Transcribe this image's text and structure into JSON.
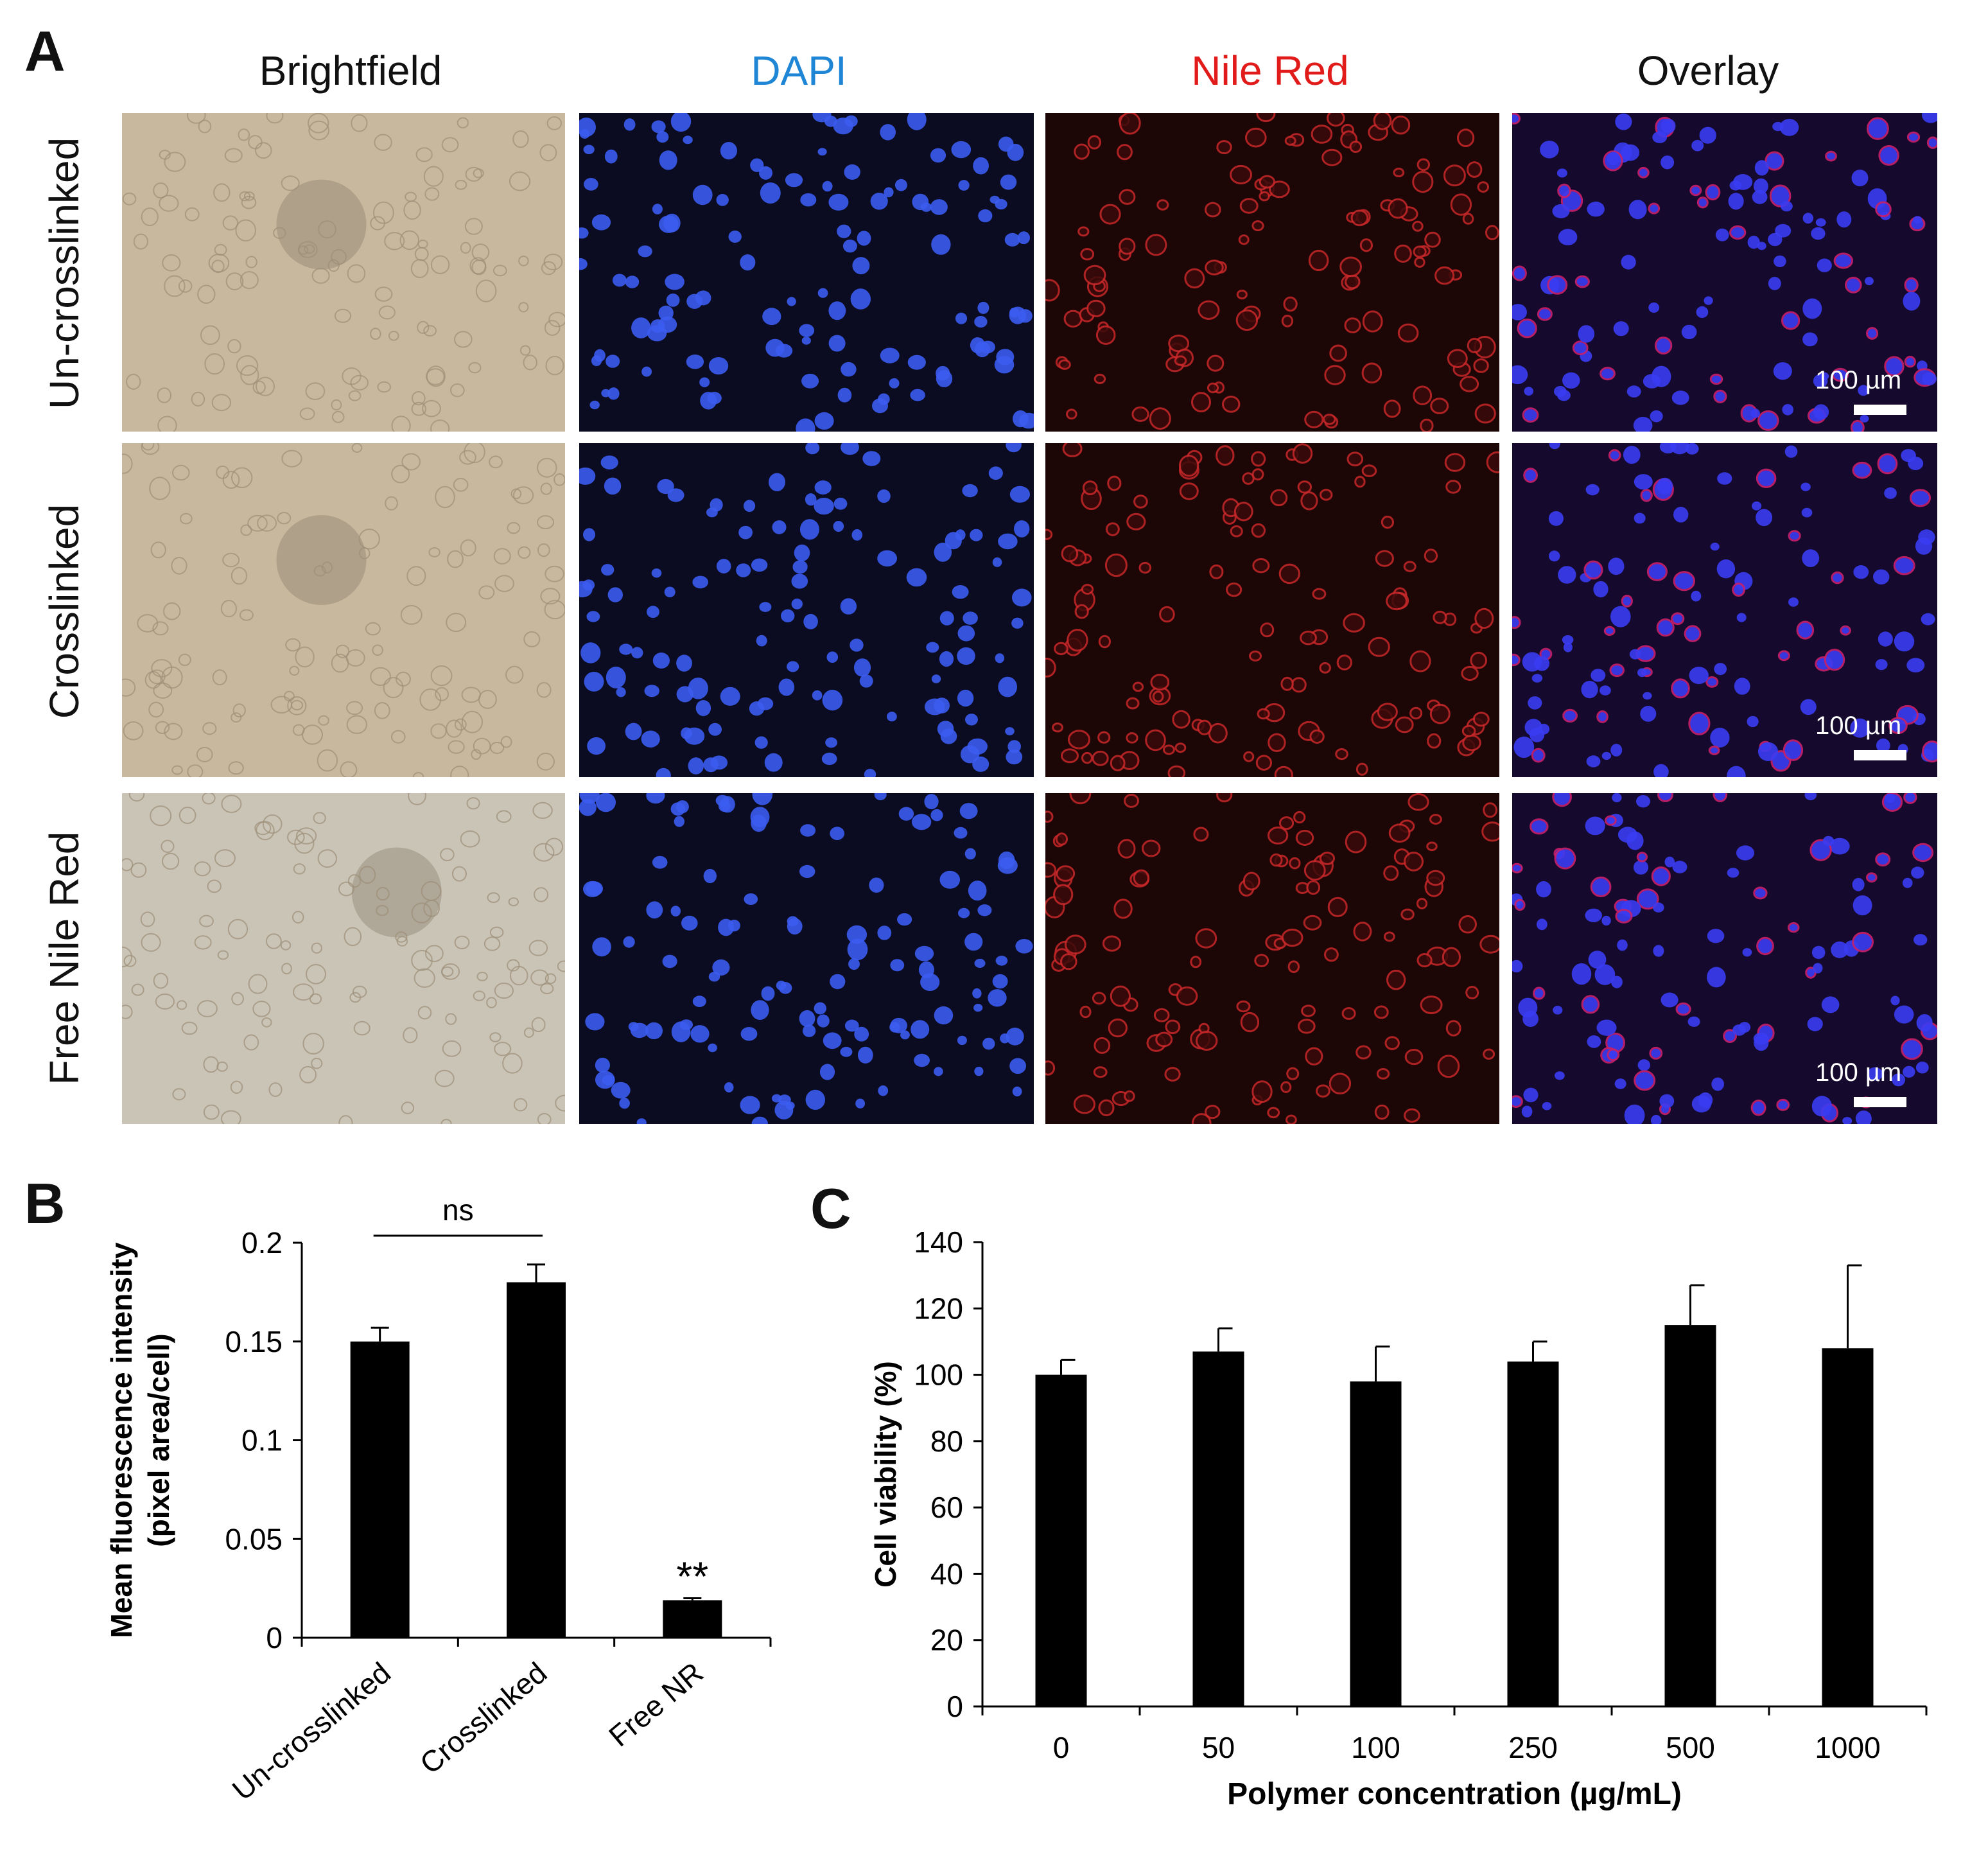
{
  "panel_a": {
    "label": "A",
    "columns": [
      {
        "label": "Brightfield",
        "color": "#111111"
      },
      {
        "label": "DAPI",
        "color": "#1f86d6"
      },
      {
        "label": "Nile Red",
        "color": "#e11a1a"
      },
      {
        "label": "Overlay",
        "color": "#111111"
      }
    ],
    "rows": [
      {
        "label": "Un-crosslinked",
        "scale_bar": "100 µm"
      },
      {
        "label": "Crosslinked",
        "scale_bar": "100 µm"
      },
      {
        "label": "Free Nile Red",
        "scale_bar": "100 µm"
      }
    ],
    "image_colors": {
      "brightfield": "#c8b89e",
      "brightfield_free": "#c9c4b6",
      "dapi_bg": "#0b0c22",
      "dapi_cell": "#3b5cf0",
      "nile_bg": "#1d0606",
      "nile_cell": "#c9282a",
      "overlay_bg": "#150a2e",
      "overlay_cell": "#3a3cf2"
    }
  },
  "chart_data": [
    {
      "panel": "B",
      "type": "bar",
      "categories": [
        "Un-crosslinked",
        "Crosslinked",
        "Free NR"
      ],
      "values": [
        0.15,
        0.18,
        0.019
      ],
      "errors": [
        0.007,
        0.009,
        0.001
      ],
      "ylabel_line1": "Mean fluorescence intensity",
      "ylabel_line2": "(pixel area/cell)",
      "ylim": [
        0,
        0.2
      ],
      "yticks": [
        "0",
        "0.05",
        "0.1",
        "0.15",
        "0.2"
      ],
      "annotations": {
        "ns": "ns",
        "significance": "**"
      },
      "grid": false,
      "bar_color": "#000000"
    },
    {
      "panel": "C",
      "type": "bar",
      "categories": [
        "0",
        "50",
        "100",
        "250",
        "500",
        "1000"
      ],
      "values": [
        100,
        107,
        98,
        104,
        115,
        108
      ],
      "errors": [
        4.5,
        7,
        10.5,
        6,
        12,
        25
      ],
      "xlabel": "Polymer concentration (µg/mL)",
      "ylabel": "Cell viability (%)",
      "ylim": [
        0,
        140
      ],
      "yticks": [
        "0",
        "20",
        "40",
        "60",
        "80",
        "100",
        "120",
        "140"
      ],
      "grid": false,
      "bar_color": "#000000"
    }
  ]
}
